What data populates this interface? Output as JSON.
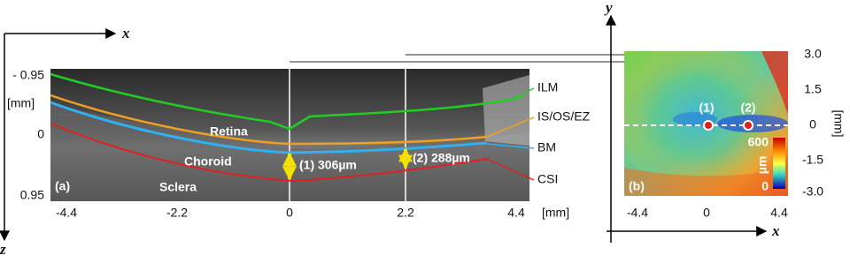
{
  "panel_a": {
    "label": "(a)",
    "axis_x": "x",
    "axis_z": "z",
    "x_ticks": [
      "-4.4",
      "-2.2",
      "0",
      "2.2",
      "4.4"
    ],
    "x_unit": "[mm]",
    "z_ticks": [
      "- 0.95",
      "0",
      "0.95"
    ],
    "z_unit": "[mm]",
    "regions": [
      "Retina",
      "Choroid",
      "Sclera"
    ],
    "layers": [
      "ILM",
      "IS/OS/EZ",
      "BM",
      "CSI"
    ],
    "measurements": [
      "(1) 306µm",
      "(2) 288µm"
    ]
  },
  "panel_b": {
    "label": "(b)",
    "axis_x": "x",
    "axis_y": "y",
    "x_ticks": [
      "-4.4",
      "0",
      "4.4"
    ],
    "y_ticks": [
      "3.0",
      "1.5",
      "0",
      "-1.5",
      "-3.0"
    ],
    "y_unit": "[mm]",
    "points": [
      "(1)",
      "(2)"
    ],
    "colorbar": {
      "max": "600",
      "unit": "µm",
      "min": "0"
    }
  }
}
